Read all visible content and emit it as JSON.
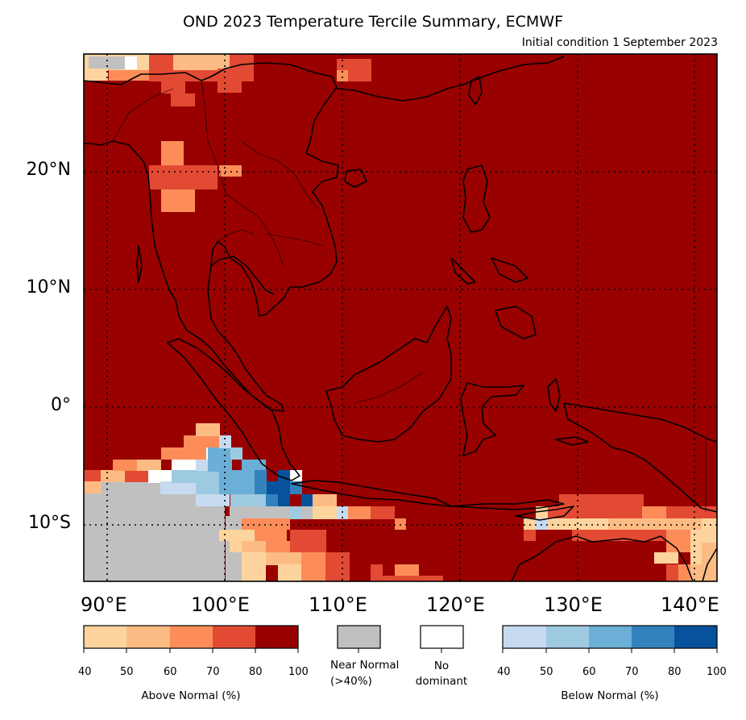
{
  "title": "OND 2023 Temperature Tercile Summary, ECMWF",
  "subtitle": "Initial condition 1 September 2023",
  "lat_labels": [
    "20°N",
    "10°N",
    "0°",
    "10°S"
  ],
  "lon_labels": [
    "90°E",
    "100°E",
    "110°E",
    "120°E",
    "130°E",
    "140°E"
  ],
  "map_extent": {
    "lon_min": 88,
    "lon_max": 142,
    "lat_min": -15,
    "lat_max": 30
  },
  "colors": {
    "above": [
      "#fdd49e",
      "#fdbb84",
      "#fc8d59",
      "#e34a33",
      "#990000"
    ],
    "near_normal": "#c0c0c0",
    "no_dominant": "#ffffff",
    "below": [
      "#c6dbef",
      "#9ecae1",
      "#6baed6",
      "#3182bd",
      "#08519c"
    ],
    "frame": "#000000"
  },
  "legend": {
    "above": {
      "ticks": [
        "40",
        "50",
        "60",
        "70",
        "80",
        "100"
      ],
      "label": "Above Normal (%)"
    },
    "near_normal": {
      "label_line1": "Near Normal",
      "label_line2": "(>40%)"
    },
    "no_dominant": {
      "label_line1": "No",
      "label_line2": "dominant"
    },
    "below": {
      "ticks": [
        "40",
        "50",
        "60",
        "70",
        "80",
        "100"
      ],
      "label": "Below Normal (%)"
    }
  }
}
